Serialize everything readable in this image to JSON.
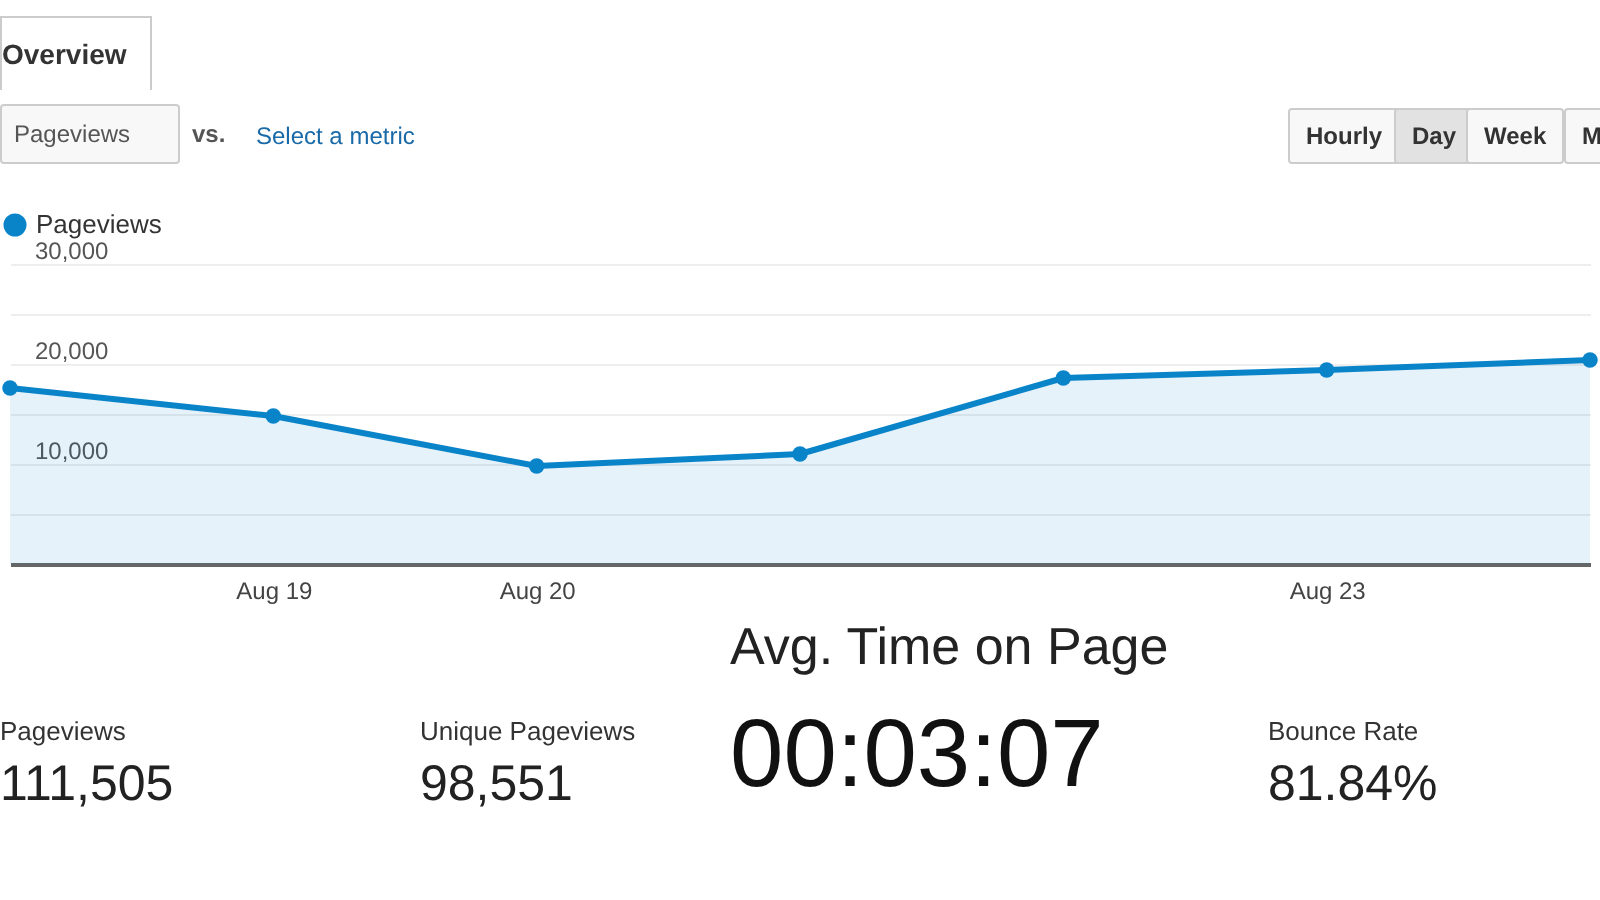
{
  "chart_data": {
    "type": "area",
    "categories": [
      null,
      "Aug 19",
      "Aug 20",
      null,
      null,
      "Aug 23",
      null
    ],
    "series": [
      {
        "name": "Pageviews",
        "color": "#0a84c9",
        "values": [
          17600,
          14800,
          9800,
          11000,
          18600,
          19400,
          20400
        ]
      }
    ],
    "ylim": [
      0,
      30000
    ],
    "yticks": [
      {
        "value": 0,
        "label": null
      },
      {
        "value": 5000,
        "label": null
      },
      {
        "value": 10000,
        "label": "10,000"
      },
      {
        "value": 15000,
        "label": null
      },
      {
        "value": 20000,
        "label": "20,000"
      },
      {
        "value": 25000,
        "label": null
      },
      {
        "value": 30000,
        "label": "30,000"
      }
    ],
    "grid": "y",
    "legend": "top left",
    "marker": "circle",
    "line_style": "solid",
    "annotations": [
      "Overview",
      "Pageviews",
      "vs.",
      "Select a metric",
      "Hourly",
      "Day",
      "Week",
      "M",
      "Pageviews",
      "111,505",
      "Unique Pageviews",
      "98,551",
      "Avg. Time on Page",
      "00:03:07",
      "Bounce Rate",
      "81.84%"
    ]
  }
}
